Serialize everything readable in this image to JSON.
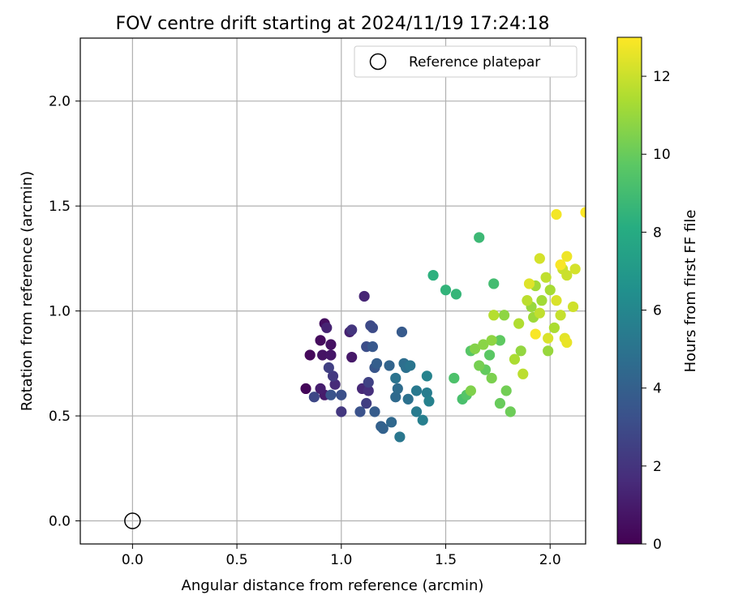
{
  "chart_data": {
    "type": "scatter",
    "title": "FOV centre drift starting at 2024/11/19 17:24:18",
    "xlabel": "Angular distance from reference (arcmin)",
    "ylabel": "Rotation from reference (arcmin)",
    "xlim": [
      -0.25,
      2.17
    ],
    "ylim": [
      -0.11,
      2.3
    ],
    "xticks": [
      0.0,
      0.5,
      1.0,
      1.5,
      2.0
    ],
    "yticks": [
      0.0,
      0.5,
      1.0,
      1.5,
      2.0
    ],
    "xtick_labels": [
      "0.0",
      "0.5",
      "1.0",
      "1.5",
      "2.0"
    ],
    "ytick_labels": [
      "0.0",
      "0.5",
      "1.0",
      "1.5",
      "2.0"
    ],
    "grid": true,
    "colormap": "viridis",
    "colorbar": {
      "label": "Hours from first FF file",
      "range": [
        0,
        13
      ],
      "ticks": [
        0,
        2,
        4,
        6,
        8,
        10,
        12
      ],
      "tick_labels": [
        "0",
        "2",
        "4",
        "6",
        "8",
        "10",
        "12"
      ]
    },
    "legend": {
      "position": "top-right",
      "entries": [
        "Reference platepar"
      ]
    },
    "reference_point": {
      "x": 0.0,
      "y": 0.0,
      "marker": "open-circle",
      "color": "#000000"
    },
    "points": [
      [
        0.83,
        0.63,
        0.2
      ],
      [
        0.85,
        0.79,
        0.3
      ],
      [
        0.9,
        0.86,
        0.4
      ],
      [
        0.92,
        0.94,
        0.5
      ],
      [
        0.95,
        0.84,
        0.6
      ],
      [
        0.91,
        0.79,
        0.7
      ],
      [
        0.95,
        0.79,
        0.8
      ],
      [
        1.05,
        0.78,
        0.9
      ],
      [
        0.92,
        0.6,
        1.0
      ],
      [
        0.9,
        0.63,
        1.1
      ],
      [
        1.04,
        0.9,
        1.2
      ],
      [
        0.93,
        0.92,
        1.3
      ],
      [
        1.11,
        1.07,
        1.4
      ],
      [
        1.1,
        0.63,
        1.5
      ],
      [
        0.97,
        0.65,
        1.6
      ],
      [
        1.13,
        0.62,
        1.8
      ],
      [
        1.05,
        0.91,
        2.0
      ],
      [
        1.0,
        0.52,
        2.1
      ],
      [
        0.96,
        0.69,
        2.2
      ],
      [
        1.12,
        0.56,
        2.4
      ],
      [
        0.94,
        0.73,
        2.5
      ],
      [
        1.13,
        0.66,
        2.6
      ],
      [
        0.87,
        0.59,
        2.8
      ],
      [
        1.14,
        0.93,
        2.9
      ],
      [
        1.15,
        0.92,
        3.0
      ],
      [
        1.12,
        0.83,
        3.1
      ],
      [
        1.0,
        0.6,
        3.2
      ],
      [
        1.09,
        0.52,
        3.3
      ],
      [
        0.95,
        0.6,
        3.4
      ],
      [
        1.16,
        0.73,
        3.5
      ],
      [
        1.15,
        0.83,
        3.6
      ],
      [
        1.29,
        0.9,
        3.7
      ],
      [
        1.16,
        0.52,
        3.8
      ],
      [
        1.17,
        0.75,
        3.9
      ],
      [
        1.19,
        0.45,
        4.0
      ],
      [
        1.2,
        0.44,
        4.1
      ],
      [
        1.23,
        0.74,
        4.2
      ],
      [
        1.24,
        0.47,
        4.4
      ],
      [
        1.26,
        0.59,
        4.5
      ],
      [
        1.27,
        0.63,
        4.6
      ],
      [
        1.3,
        0.75,
        4.7
      ],
      [
        1.31,
        0.73,
        4.8
      ],
      [
        1.32,
        0.58,
        4.9
      ],
      [
        1.26,
        0.68,
        5.0
      ],
      [
        1.33,
        0.74,
        5.1
      ],
      [
        1.28,
        0.4,
        5.2
      ],
      [
        1.36,
        0.62,
        5.3
      ],
      [
        1.36,
        0.52,
        5.4
      ],
      [
        1.41,
        0.61,
        5.5
      ],
      [
        1.39,
        0.48,
        5.6
      ],
      [
        1.42,
        0.57,
        5.7
      ],
      [
        1.41,
        0.69,
        5.8
      ],
      [
        1.44,
        1.17,
        8.3
      ],
      [
        1.5,
        1.1,
        8.5
      ],
      [
        1.55,
        1.08,
        8.6
      ],
      [
        1.66,
        1.35,
        8.8
      ],
      [
        1.73,
        1.13,
        9.0
      ],
      [
        1.58,
        0.58,
        9.2
      ],
      [
        1.54,
        0.68,
        9.3
      ],
      [
        1.6,
        0.6,
        9.5
      ],
      [
        1.62,
        0.81,
        9.6
      ],
      [
        1.71,
        0.79,
        9.7
      ],
      [
        1.76,
        0.86,
        9.8
      ],
      [
        1.69,
        0.72,
        9.9
      ],
      [
        1.76,
        0.56,
        10.0
      ],
      [
        1.81,
        0.52,
        10.1
      ],
      [
        1.79,
        0.62,
        10.2
      ],
      [
        1.66,
        0.74,
        10.3
      ],
      [
        1.72,
        0.68,
        10.4
      ],
      [
        1.62,
        0.62,
        10.5
      ],
      [
        1.64,
        0.82,
        10.6
      ],
      [
        1.68,
        0.84,
        10.7
      ],
      [
        1.72,
        0.86,
        10.8
      ],
      [
        1.78,
        0.98,
        10.8
      ],
      [
        1.86,
        0.81,
        10.9
      ],
      [
        1.91,
        1.02,
        11.0
      ],
      [
        1.99,
        0.81,
        11.0
      ],
      [
        1.92,
        0.97,
        11.1
      ],
      [
        1.93,
        1.12,
        11.2
      ],
      [
        1.96,
        1.05,
        11.2
      ],
      [
        2.0,
        1.1,
        11.3
      ],
      [
        2.02,
        0.92,
        11.4
      ],
      [
        1.83,
        0.77,
        11.4
      ],
      [
        1.85,
        0.94,
        11.5
      ],
      [
        1.73,
        0.98,
        11.6
      ],
      [
        1.87,
        0.7,
        11.7
      ],
      [
        1.89,
        1.05,
        11.7
      ],
      [
        1.95,
        0.99,
        11.8
      ],
      [
        1.98,
        1.16,
        11.8
      ],
      [
        2.05,
        0.98,
        11.9
      ],
      [
        2.06,
        1.2,
        12.0
      ],
      [
        2.08,
        1.17,
        12.0
      ],
      [
        2.11,
        1.02,
        12.1
      ],
      [
        2.12,
        1.2,
        12.2
      ],
      [
        1.95,
        1.25,
        12.2
      ],
      [
        1.99,
        0.87,
        12.3
      ],
      [
        2.03,
        1.05,
        12.3
      ],
      [
        1.9,
        1.13,
        12.4
      ],
      [
        2.07,
        0.87,
        12.5
      ],
      [
        2.08,
        0.85,
        12.6
      ],
      [
        2.08,
        1.26,
        12.7
      ],
      [
        2.03,
        1.46,
        12.8
      ],
      [
        2.05,
        1.22,
        12.9
      ],
      [
        2.17,
        1.47,
        13.0
      ],
      [
        1.93,
        0.89,
        12.9
      ]
    ]
  }
}
